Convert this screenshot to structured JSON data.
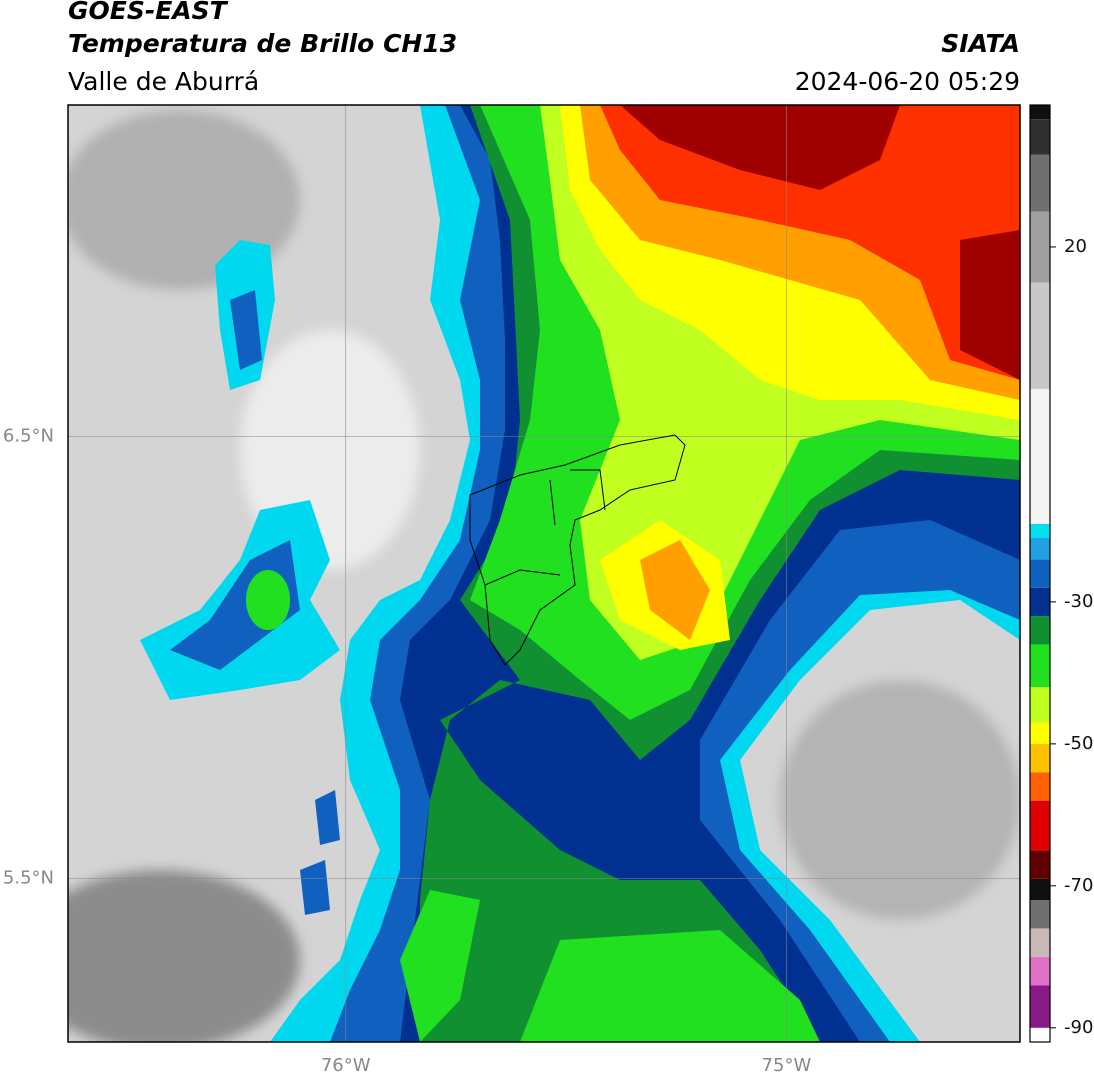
{
  "header": {
    "title": "GOES-EAST",
    "subtitle": "Temperatura de Brillo CH13",
    "region": "Valle de Aburrá",
    "source": "SIATA",
    "datetime": "2024-06-20 05:29"
  },
  "map": {
    "xlim": [
      -76.63,
      -74.47
    ],
    "ylim": [
      5.13,
      7.25
    ],
    "xticks": [
      {
        "value": -76,
        "label": "76°W"
      },
      {
        "value": -75,
        "label": "75°W"
      }
    ],
    "yticks": [
      {
        "value": 6.5,
        "label": "6.5°N"
      },
      {
        "value": 5.5,
        "label": "5.5°N"
      }
    ],
    "grid": true
  },
  "colorbar": {
    "lim": [
      -92,
      40
    ],
    "ticks": [
      20,
      -30,
      -50,
      -70,
      -90
    ],
    "stops": [
      {
        "value": -92,
        "color": "#ffffff"
      },
      {
        "value": -90,
        "color": "#8a1a8a"
      },
      {
        "value": -84,
        "color": "#e070c8"
      },
      {
        "value": -80,
        "color": "#c8b8b8"
      },
      {
        "value": -76,
        "color": "#707070"
      },
      {
        "value": -72,
        "color": "#101010"
      },
      {
        "value": -69,
        "color": "#600000"
      },
      {
        "value": -65,
        "color": "#e00000"
      },
      {
        "value": -58,
        "color": "#ff6000"
      },
      {
        "value": -54,
        "color": "#ffc000"
      },
      {
        "value": -50,
        "color": "#ffff00"
      },
      {
        "value": -47,
        "color": "#c0ff20"
      },
      {
        "value": -42,
        "color": "#20e020"
      },
      {
        "value": -36,
        "color": "#109030"
      },
      {
        "value": -32,
        "color": "#003090"
      },
      {
        "value": -28,
        "color": "#1060c0"
      },
      {
        "value": -24,
        "color": "#20a0e0"
      },
      {
        "value": -21,
        "color": "#00e0f0"
      },
      {
        "value": -19,
        "color": "#f4f4f4"
      },
      {
        "value": 0,
        "color": "#c8c8c8"
      },
      {
        "value": 15,
        "color": "#a0a0a0"
      },
      {
        "value": 25,
        "color": "#707070"
      },
      {
        "value": 33,
        "color": "#303030"
      },
      {
        "value": 38,
        "color": "#101010"
      }
    ]
  }
}
